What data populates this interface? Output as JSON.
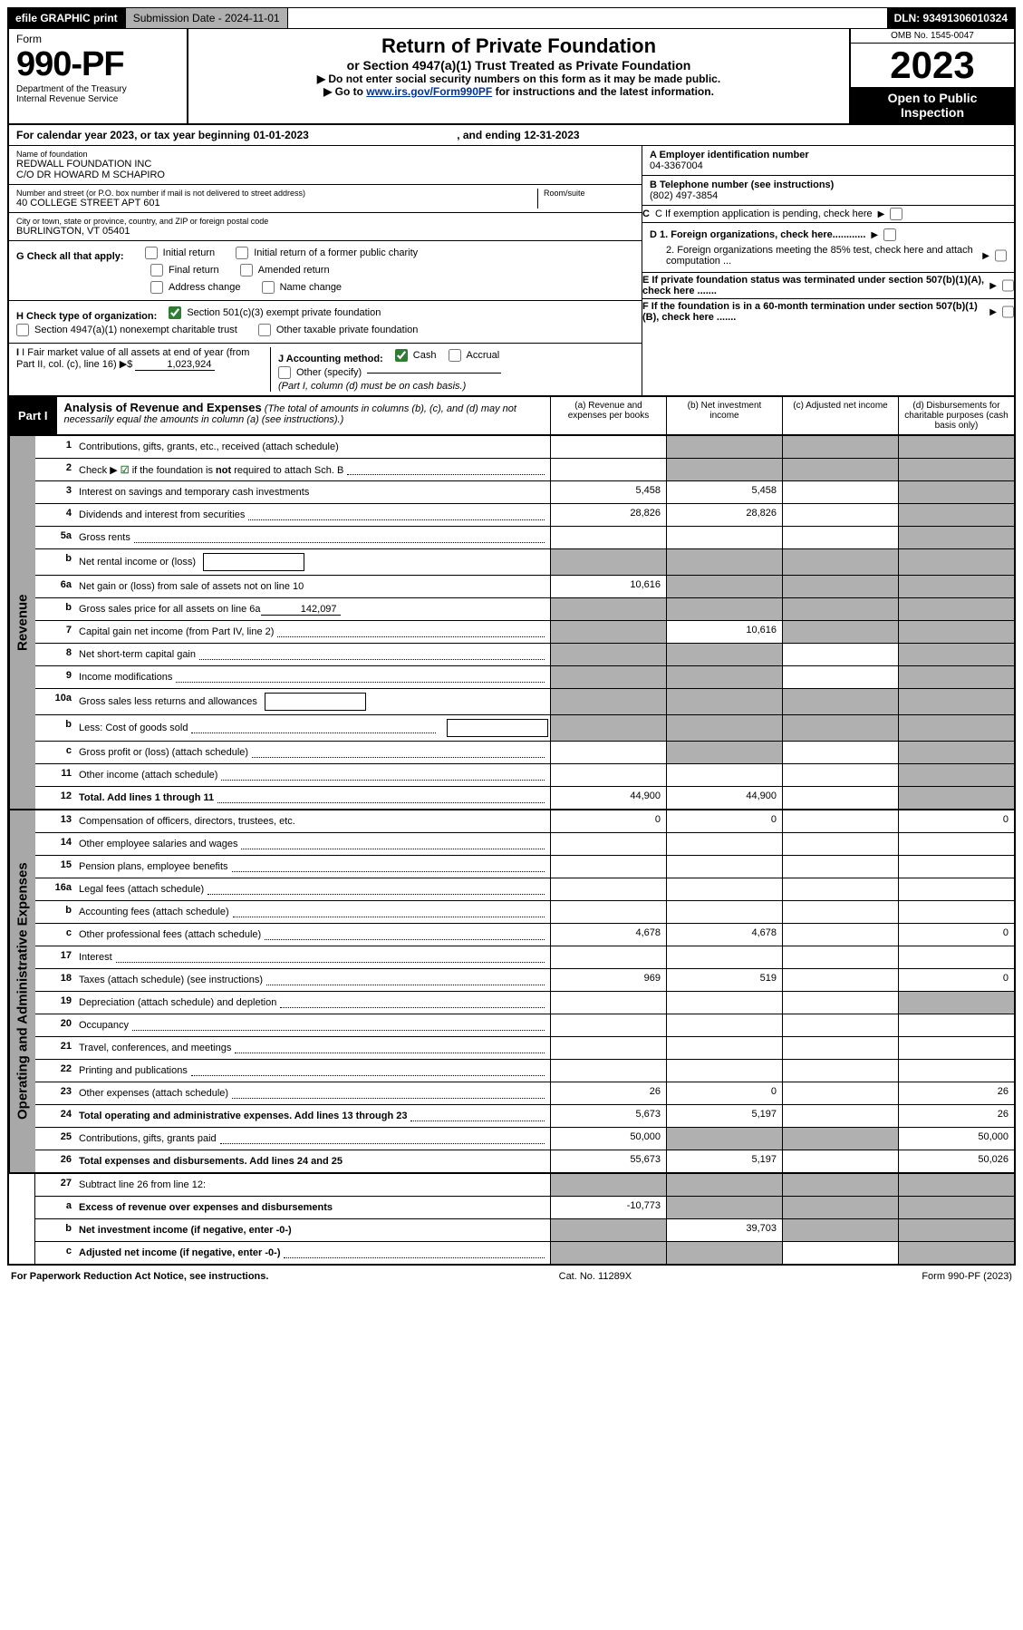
{
  "topbar": {
    "efile": "efile GRAPHIC print",
    "sub_label": "Submission Date - 2024-11-01",
    "dln": "DLN: 93491306010324"
  },
  "header": {
    "form_label": "Form",
    "form_num": "990-PF",
    "dept": "Department of the Treasury",
    "irs": "Internal Revenue Service",
    "title": "Return of Private Foundation",
    "subtitle": "or Section 4947(a)(1) Trust Treated as Private Foundation",
    "instr1": "▶ Do not enter social security numbers on this form as it may be made public.",
    "instr2_pre": "▶ Go to ",
    "instr2_link": "www.irs.gov/Form990PF",
    "instr2_post": " for instructions and the latest information.",
    "omb": "OMB No. 1545-0047",
    "year": "2023",
    "open": "Open to Public Inspection"
  },
  "calendar": {
    "line_pre": "For calendar year 2023, or tax year beginning ",
    "begin": "01-01-2023",
    "mid": " , and ending ",
    "end": "12-31-2023"
  },
  "meta": {
    "name_label": "Name of foundation",
    "name1": "REDWALL FOUNDATION INC",
    "name2": "C/O DR HOWARD M SCHAPIRO",
    "addr_label": "Number and street (or P.O. box number if mail is not delivered to street address)",
    "room_label": "Room/suite",
    "addr": "40 COLLEGE STREET APT 601",
    "city_label": "City or town, state or province, country, and ZIP or foreign postal code",
    "city": "BURLINGTON, VT  05401",
    "a_label": "A Employer identification number",
    "a_val": "04-3367004",
    "b_label": "B Telephone number (see instructions)",
    "b_val": "(802) 497-3854",
    "c_label": "C If exemption application is pending, check here",
    "d1": "D 1. Foreign organizations, check here............",
    "d2": "2. Foreign organizations meeting the 85% test, check here and attach computation ...",
    "e": "E  If private foundation status was terminated under section 507(b)(1)(A), check here .......",
    "f": "F  If the foundation is in a 60-month termination under section 507(b)(1)(B), check here .......",
    "g_label": "G Check all that apply:",
    "g_opts": [
      "Initial return",
      "Initial return of a former public charity",
      "Final return",
      "Amended return",
      "Address change",
      "Name change"
    ],
    "h_label": "H Check type of organization:",
    "h1": "Section 501(c)(3) exempt private foundation",
    "h2": "Section 4947(a)(1) nonexempt charitable trust",
    "h3": "Other taxable private foundation",
    "i_label": "I Fair market value of all assets at end of year (from Part II, col. (c), line 16)",
    "i_val": "1,023,924",
    "j_label": "J Accounting method:",
    "j_cash": "Cash",
    "j_accrual": "Accrual",
    "j_other": "Other (specify)",
    "j_note": "(Part I, column (d) must be on cash basis.)"
  },
  "part1": {
    "tag": "Part I",
    "title": "Analysis of Revenue and Expenses",
    "title_note": " (The total of amounts in columns (b), (c), and (d) may not necessarily equal the amounts in column (a) (see instructions).)",
    "col_a": "(a)   Revenue and expenses per books",
    "col_b": "(b)   Net investment income",
    "col_c": "(c)   Adjusted net income",
    "col_d": "(d)   Disbursements for charitable purposes (cash basis only)"
  },
  "sections": {
    "revenue": "Revenue",
    "opex": "Operating and Administrative Expenses"
  },
  "lines": [
    {
      "n": "1",
      "label": "Contributions, gifts, grants, etc., received (attach schedule)",
      "a": "",
      "b_shade": true,
      "c_shade": true,
      "d_shade": true
    },
    {
      "n": "2",
      "label": "Check ▶ ☑ if the foundation is not required to attach Sch. B",
      "dots": true,
      "a": "",
      "b_shade": true,
      "c_shade": true,
      "d_shade": true,
      "has_check": true
    },
    {
      "n": "3",
      "label": "Interest on savings and temporary cash investments",
      "a": "5,458",
      "b": "5,458",
      "d_shade": true
    },
    {
      "n": "4",
      "label": "Dividends and interest from securities",
      "dots": true,
      "a": "28,826",
      "b": "28,826",
      "d_shade": true
    },
    {
      "n": "5a",
      "label": "Gross rents",
      "dots": true,
      "d_shade": true
    },
    {
      "n": "b",
      "label": "Net rental income or (loss)",
      "inline_box": true,
      "a_shade": true,
      "b_shade": true,
      "c_shade": true,
      "d_shade": true
    },
    {
      "n": "6a",
      "label": "Net gain or (loss) from sale of assets not on line 10",
      "a": "10,616",
      "b_shade": true,
      "c_shade": true,
      "d_shade": true
    },
    {
      "n": "b",
      "label": "Gross sales price for all assets on line 6a",
      "inline_underline": "142,097",
      "a_shade": true,
      "b_shade": true,
      "c_shade": true,
      "d_shade": true
    },
    {
      "n": "7",
      "label": "Capital gain net income (from Part IV, line 2)",
      "dots": true,
      "a_shade": true,
      "b": "10,616",
      "c_shade": true,
      "d_shade": true
    },
    {
      "n": "8",
      "label": "Net short-term capital gain",
      "dots": true,
      "a_shade": true,
      "b_shade": true,
      "d_shade": true
    },
    {
      "n": "9",
      "label": "Income modifications",
      "dots": true,
      "a_shade": true,
      "b_shade": true,
      "d_shade": true
    },
    {
      "n": "10a",
      "label": "Gross sales less returns and allowances",
      "inline_box": true,
      "a_shade": true,
      "b_shade": true,
      "c_shade": true,
      "d_shade": true
    },
    {
      "n": "b",
      "label": "Less: Cost of goods sold",
      "dots": true,
      "inline_box": true,
      "a_shade": true,
      "b_shade": true,
      "c_shade": true,
      "d_shade": true
    },
    {
      "n": "c",
      "label": "Gross profit or (loss) (attach schedule)",
      "dots": true,
      "b_shade": true,
      "d_shade": true
    },
    {
      "n": "11",
      "label": "Other income (attach schedule)",
      "dots": true,
      "d_shade": true
    },
    {
      "n": "12",
      "label": "Total. Add lines 1 through 11",
      "dots": true,
      "bold": true,
      "a": "44,900",
      "b": "44,900",
      "d_shade": true
    }
  ],
  "opex_lines": [
    {
      "n": "13",
      "label": "Compensation of officers, directors, trustees, etc.",
      "a": "0",
      "b": "0",
      "d": "0"
    },
    {
      "n": "14",
      "label": "Other employee salaries and wages",
      "dots": true
    },
    {
      "n": "15",
      "label": "Pension plans, employee benefits",
      "dots": true
    },
    {
      "n": "16a",
      "label": "Legal fees (attach schedule)",
      "dots": true
    },
    {
      "n": "b",
      "label": "Accounting fees (attach schedule)",
      "dots": true
    },
    {
      "n": "c",
      "label": "Other professional fees (attach schedule)",
      "dots": true,
      "a": "4,678",
      "b": "4,678",
      "d": "0"
    },
    {
      "n": "17",
      "label": "Interest",
      "dots": true
    },
    {
      "n": "18",
      "label": "Taxes (attach schedule) (see instructions)",
      "dots": true,
      "a": "969",
      "b": "519",
      "d": "0"
    },
    {
      "n": "19",
      "label": "Depreciation (attach schedule) and depletion",
      "dots": true,
      "d_shade": true
    },
    {
      "n": "20",
      "label": "Occupancy",
      "dots": true
    },
    {
      "n": "21",
      "label": "Travel, conferences, and meetings",
      "dots": true
    },
    {
      "n": "22",
      "label": "Printing and publications",
      "dots": true
    },
    {
      "n": "23",
      "label": "Other expenses (attach schedule)",
      "dots": true,
      "a": "26",
      "b": "0",
      "d": "26"
    },
    {
      "n": "24",
      "label": "Total operating and administrative expenses. Add lines 13 through 23",
      "dots": true,
      "bold": true,
      "a": "5,673",
      "b": "5,197",
      "d": "26"
    },
    {
      "n": "25",
      "label": "Contributions, gifts, grants paid",
      "dots": true,
      "a": "50,000",
      "b_shade": true,
      "c_shade": true,
      "d": "50,000"
    },
    {
      "n": "26",
      "label": "Total expenses and disbursements. Add lines 24 and 25",
      "bold": true,
      "a": "55,673",
      "b": "5,197",
      "d": "50,026"
    }
  ],
  "bottom_lines": [
    {
      "n": "27",
      "label": "Subtract line 26 from line 12:",
      "a_shade": true,
      "b_shade": true,
      "c_shade": true,
      "d_shade": true
    },
    {
      "n": "a",
      "label": "Excess of revenue over expenses and disbursements",
      "bold": true,
      "a": "-10,773",
      "b_shade": true,
      "c_shade": true,
      "d_shade": true
    },
    {
      "n": "b",
      "label": "Net investment income (if negative, enter -0-)",
      "bold": true,
      "a_shade": true,
      "b": "39,703",
      "c_shade": true,
      "d_shade": true
    },
    {
      "n": "c",
      "label": "Adjusted net income (if negative, enter -0-)",
      "dots": true,
      "bold": true,
      "a_shade": true,
      "b_shade": true,
      "d_shade": true
    }
  ],
  "footer": {
    "left": "For Paperwork Reduction Act Notice, see instructions.",
    "mid": "Cat. No. 11289X",
    "right": "Form 990-PF (2023)"
  }
}
